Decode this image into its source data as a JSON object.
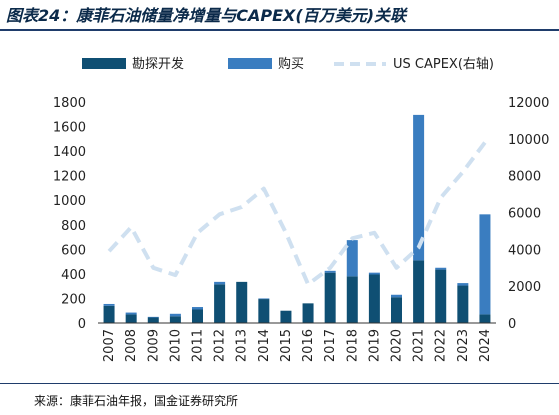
{
  "figure": {
    "title": "图表24：康菲石油储量净增量与CAPEX(百万美元)关联",
    "source": "来源：康菲石油年报，国金证券研究所"
  },
  "colors": {
    "exploration": "#0f4f73",
    "purchase": "#3a7dc0",
    "capex": "#cfe0f0",
    "rule": "#1f3c6b"
  },
  "chart_data": {
    "type": "bar",
    "stacked": true,
    "categories": [
      "2007",
      "2008",
      "2009",
      "2010",
      "2011",
      "2012",
      "2013",
      "2014",
      "2015",
      "2016",
      "2017",
      "2018",
      "2019",
      "2020",
      "2021",
      "2022",
      "2023",
      "2024"
    ],
    "series": [
      {
        "name": "勘探开发",
        "axis": "left",
        "color": "#0f4f73",
        "values": [
          140,
          70,
          45,
          55,
          110,
          315,
          335,
          195,
          100,
          160,
          410,
          380,
          395,
          210,
          510,
          435,
          305,
          70
        ]
      },
      {
        "name": "购买",
        "axis": "left",
        "color": "#3a7dc0",
        "values": [
          15,
          15,
          5,
          20,
          20,
          20,
          0,
          5,
          0,
          0,
          15,
          295,
          15,
          20,
          1185,
          15,
          20,
          815
        ]
      },
      {
        "name": "US CAPEX(右轴)",
        "axis": "right",
        "type": "line",
        "dashed": true,
        "color": "#cfe0f0",
        "values": [
          3900,
          5200,
          3000,
          2600,
          4900,
          5900,
          6300,
          7300,
          4900,
          2100,
          3000,
          4600,
          4900,
          3000,
          4100,
          6800,
          8200,
          9800
        ]
      }
    ],
    "y_left": {
      "min": 0,
      "max": 1800,
      "ticks": [
        0,
        200,
        400,
        600,
        800,
        1000,
        1200,
        1400,
        1600,
        1800
      ]
    },
    "y_right": {
      "min": 0,
      "max": 12000,
      "ticks": [
        0,
        2000,
        4000,
        6000,
        8000,
        10000,
        12000
      ]
    },
    "legend": {
      "position": "top",
      "items": [
        "勘探开发",
        "购买",
        "US CAPEX(右轴)"
      ]
    },
    "grid": false
  }
}
